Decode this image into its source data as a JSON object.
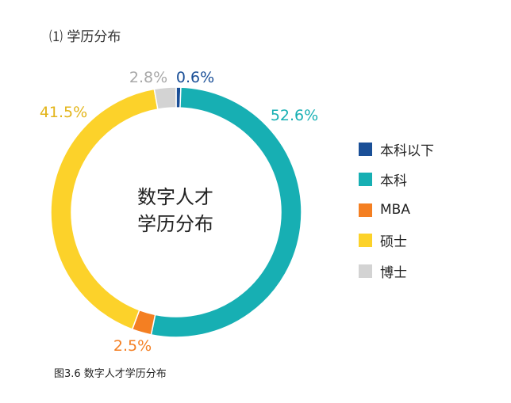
{
  "subtitle": "⑴ 学历分布",
  "caption": "图3.6 数字人才学历分布",
  "chart_data": {
    "type": "pie",
    "style": "donut",
    "title": "⑴ 学历分布",
    "center_label": [
      "数字人才",
      "学历分布"
    ],
    "start_angle_deg": 0,
    "direction": "clockwise",
    "slices": [
      {
        "name": "本科以下",
        "value": 0.6,
        "label": "0.6%",
        "color": "#1a4f97"
      },
      {
        "name": "本科",
        "value": 52.6,
        "label": "52.6%",
        "color": "#17afb3"
      },
      {
        "name": "MBA",
        "value": 2.5,
        "label": "2.5%",
        "color": "#f47f22"
      },
      {
        "name": "硕士",
        "value": 41.5,
        "label": "41.5%",
        "color": "#fcd22a"
      },
      {
        "name": "博士",
        "value": 2.8,
        "label": "2.8%",
        "color": "#d3d3d3"
      }
    ],
    "label_colors": {
      "本科以下": "#1a4f97",
      "本科": "#17afb3",
      "MBA": "#f47f22",
      "硕士": "#e3b51a",
      "博士": "#a8a8a8"
    },
    "legend_position": "right"
  }
}
